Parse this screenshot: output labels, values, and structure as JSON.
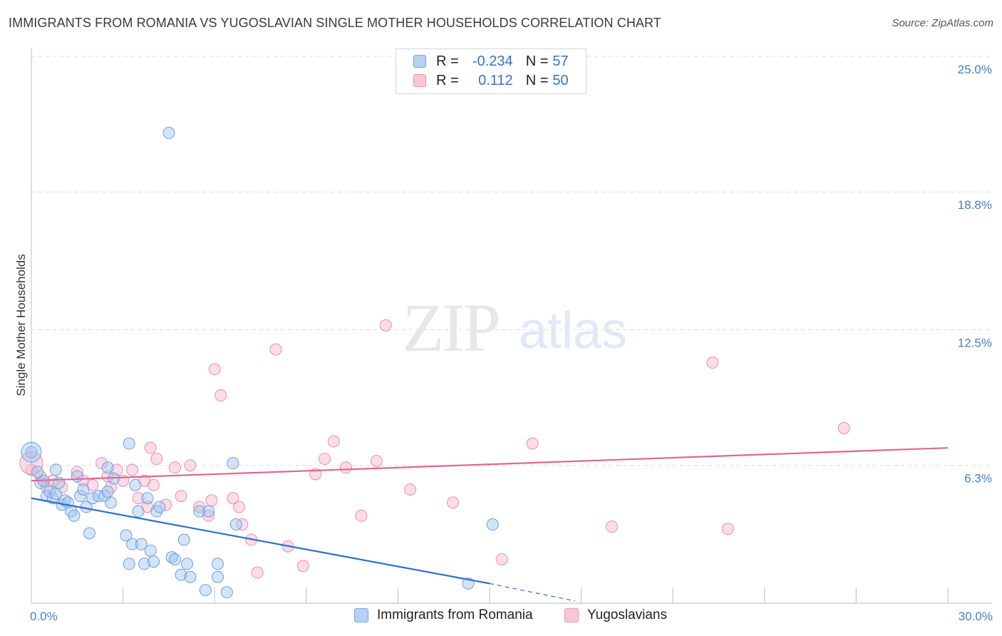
{
  "title": "IMMIGRANTS FROM ROMANIA VS YUGOSLAVIAN SINGLE MOTHER HOUSEHOLDS CORRELATION CHART",
  "source": "Source: ZipAtlas.com",
  "watermark": {
    "zip": "ZIP",
    "atlas": "atlas"
  },
  "legend": {
    "r_label": "R =",
    "n_label": "N =",
    "rows": [
      {
        "r": "-0.234",
        "n": "57",
        "fill": "#b8d0f2",
        "stroke": "#7aa6e0"
      },
      {
        "r": "0.112",
        "n": "50",
        "fill": "#f9c6d6",
        "stroke": "#e995b0"
      }
    ]
  },
  "bottom_legend": {
    "romania": "Immigrants from Romania",
    "yugoslavians": "Yugoslavians"
  },
  "colors": {
    "blue_fill": "rgba(160,196,240,0.45)",
    "blue_stroke": "#6f9fdc",
    "blue_line": "#2f6fce",
    "pink_fill": "rgba(246,180,202,0.45)",
    "pink_stroke": "#e78faf",
    "pink_line": "#e2668f",
    "tick_label": "#4a7cc9",
    "grid": "#dcdcdc"
  },
  "chart_data": {
    "type": "scatter",
    "title": "IMMIGRANTS FROM ROMANIA VS YUGOSLAVIAN SINGLE MOTHER HOUSEHOLDS CORRELATION CHART",
    "xlabel": "",
    "ylabel": "Single Mother Households",
    "xlim": [
      0,
      30
    ],
    "ylim": [
      0,
      25
    ],
    "x_tick_labels": [
      "0.0%",
      "30.0%"
    ],
    "y_ticks": [
      6.3,
      12.5,
      18.8,
      25.0
    ],
    "y_tick_labels": [
      "6.3%",
      "12.5%",
      "18.8%",
      "25.0%"
    ],
    "grid": true,
    "series": [
      {
        "name": "Immigrants from Romania",
        "color": "blue",
        "r": -0.234,
        "n": 57,
        "points": [
          [
            0.0,
            6.9
          ],
          [
            0.2,
            6.0
          ],
          [
            0.3,
            5.5
          ],
          [
            0.4,
            5.6
          ],
          [
            0.5,
            4.9
          ],
          [
            0.6,
            5.1
          ],
          [
            0.7,
            4.8
          ],
          [
            0.8,
            5.0
          ],
          [
            0.8,
            6.1
          ],
          [
            0.9,
            5.5
          ],
          [
            1.0,
            4.5
          ],
          [
            1.1,
            4.7
          ],
          [
            1.2,
            4.6
          ],
          [
            1.3,
            4.2
          ],
          [
            1.4,
            4.0
          ],
          [
            1.5,
            5.8
          ],
          [
            1.6,
            4.9
          ],
          [
            1.7,
            5.2
          ],
          [
            1.8,
            4.4
          ],
          [
            1.9,
            3.2
          ],
          [
            2.0,
            4.8
          ],
          [
            2.2,
            4.9
          ],
          [
            2.4,
            4.9
          ],
          [
            2.5,
            6.2
          ],
          [
            2.5,
            5.1
          ],
          [
            2.6,
            4.6
          ],
          [
            2.7,
            5.7
          ],
          [
            3.1,
            3.1
          ],
          [
            3.2,
            1.8
          ],
          [
            3.3,
            2.7
          ],
          [
            3.4,
            5.4
          ],
          [
            3.5,
            4.2
          ],
          [
            3.6,
            2.7
          ],
          [
            3.7,
            1.8
          ],
          [
            3.8,
            4.8
          ],
          [
            3.9,
            2.4
          ],
          [
            4.0,
            1.9
          ],
          [
            4.1,
            4.2
          ],
          [
            4.2,
            4.4
          ],
          [
            4.5,
            21.5
          ],
          [
            4.6,
            2.1
          ],
          [
            4.7,
            2.0
          ],
          [
            4.9,
            1.3
          ],
          [
            5.0,
            2.9
          ],
          [
            5.1,
            1.8
          ],
          [
            5.2,
            1.2
          ],
          [
            5.5,
            4.2
          ],
          [
            5.7,
            0.6
          ],
          [
            5.8,
            4.2
          ],
          [
            6.1,
            1.2
          ],
          [
            6.1,
            1.8
          ],
          [
            6.4,
            0.5
          ],
          [
            6.6,
            6.4
          ],
          [
            6.7,
            3.6
          ],
          [
            14.3,
            0.9
          ],
          [
            3.2,
            7.3
          ],
          [
            15.1,
            3.6
          ]
        ],
        "trend": {
          "x": [
            0.0,
            15.0
          ],
          "y": [
            4.8,
            0.9
          ],
          "dash_to": [
            17.8,
            0.1
          ]
        }
      },
      {
        "name": "Yugoslavians",
        "color": "pink",
        "r": 0.112,
        "n": 50,
        "points": [
          [
            0.0,
            6.1
          ],
          [
            0.3,
            5.8
          ],
          [
            0.5,
            5.3
          ],
          [
            0.7,
            5.6
          ],
          [
            1.0,
            5.3
          ],
          [
            1.5,
            6.0
          ],
          [
            1.7,
            5.6
          ],
          [
            2.0,
            5.4
          ],
          [
            2.3,
            6.4
          ],
          [
            2.5,
            5.8
          ],
          [
            2.6,
            5.3
          ],
          [
            2.8,
            6.1
          ],
          [
            3.0,
            5.6
          ],
          [
            3.3,
            6.1
          ],
          [
            3.5,
            4.8
          ],
          [
            3.7,
            5.6
          ],
          [
            3.8,
            4.4
          ],
          [
            3.9,
            7.1
          ],
          [
            4.0,
            5.4
          ],
          [
            4.1,
            6.6
          ],
          [
            4.4,
            4.5
          ],
          [
            4.7,
            6.2
          ],
          [
            4.9,
            4.9
          ],
          [
            5.2,
            6.3
          ],
          [
            5.5,
            4.4
          ],
          [
            5.8,
            4.0
          ],
          [
            5.9,
            4.7
          ],
          [
            6.0,
            10.7
          ],
          [
            6.2,
            9.5
          ],
          [
            6.6,
            4.8
          ],
          [
            6.8,
            4.4
          ],
          [
            6.9,
            3.6
          ],
          [
            7.2,
            2.9
          ],
          [
            7.4,
            1.4
          ],
          [
            8.0,
            11.6
          ],
          [
            8.4,
            2.6
          ],
          [
            8.9,
            1.7
          ],
          [
            9.3,
            5.9
          ],
          [
            9.6,
            6.6
          ],
          [
            9.9,
            7.4
          ],
          [
            10.3,
            6.2
          ],
          [
            10.8,
            4.0
          ],
          [
            11.3,
            6.5
          ],
          [
            11.6,
            12.7
          ],
          [
            12.4,
            5.2
          ],
          [
            13.8,
            4.6
          ],
          [
            15.4,
            2.0
          ],
          [
            16.4,
            7.3
          ],
          [
            19.0,
            3.5
          ],
          [
            22.3,
            11.0
          ]
        ],
        "extra_points": [
          [
            22.8,
            3.4
          ],
          [
            26.6,
            8.0
          ]
        ],
        "trend": {
          "x": [
            0.0,
            30.0
          ],
          "y": [
            5.6,
            7.1
          ]
        }
      }
    ]
  }
}
